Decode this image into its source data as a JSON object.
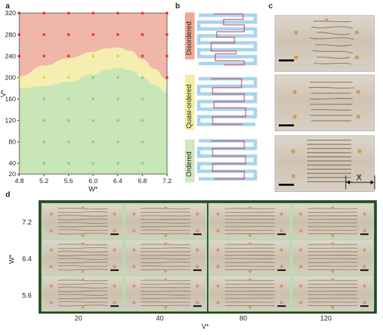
{
  "panels": {
    "a": "a",
    "b": "b",
    "c": "c",
    "d": "d"
  },
  "chart_data": {
    "type": "area",
    "xlabel": "W*",
    "ylabel": "V*",
    "xlim": [
      4.8,
      7.2
    ],
    "ylim": [
      20,
      320
    ],
    "x_ticks": [
      "4.8",
      "5.2",
      "5.6",
      "6.0",
      "6.4",
      "6.8",
      "7.2"
    ],
    "y_ticks": [
      "20",
      "40",
      "80",
      "120",
      "160",
      "200",
      "240",
      "280",
      "320"
    ],
    "regions": [
      {
        "name": "Ordered",
        "color": "#c9e6b6"
      },
      {
        "name": "Quasi-ordered",
        "color": "#f4efb0"
      },
      {
        "name": "Disordered",
        "color": "#f0b6a8"
      }
    ],
    "boundary_ordered_quasi": {
      "x": [
        4.8,
        5.2,
        5.6,
        6.0,
        6.2,
        6.4,
        6.6,
        6.8,
        7.0,
        7.2
      ],
      "y": [
        180,
        184,
        192,
        206,
        214,
        218,
        214,
        200,
        186,
        172
      ]
    },
    "boundary_quasi_disordered": {
      "x": [
        4.8,
        5.2,
        5.6,
        6.0,
        6.2,
        6.4,
        6.6,
        6.8,
        7.0,
        7.2
      ],
      "y": [
        202,
        222,
        236,
        248,
        254,
        256,
        250,
        234,
        216,
        196
      ]
    },
    "points_x": [
      4.8,
      5.2,
      5.6,
      6.0,
      6.4,
      6.8,
      7.2
    ],
    "points_y": [
      20,
      40,
      80,
      120,
      160,
      200,
      240,
      280,
      320
    ],
    "point_colors": {
      "ordered": "#8fd08a",
      "quasi": "#e6d23a",
      "disordered": "#e03c32"
    }
  },
  "panel_b": {
    "labels": [
      "Disordered",
      "Quasi-ordered",
      "Ordered"
    ],
    "label_colors": [
      "#f0a898",
      "#f3ee9e",
      "#cfe8be"
    ]
  },
  "panel_c": {
    "x_marker": "X"
  },
  "panel_d": {
    "row_labels": [
      "7.2",
      "6.4",
      "5.6"
    ],
    "col_labels": [
      "20",
      "40",
      "80",
      "120"
    ],
    "xlabel": "V*",
    "ylabel": "W*"
  }
}
